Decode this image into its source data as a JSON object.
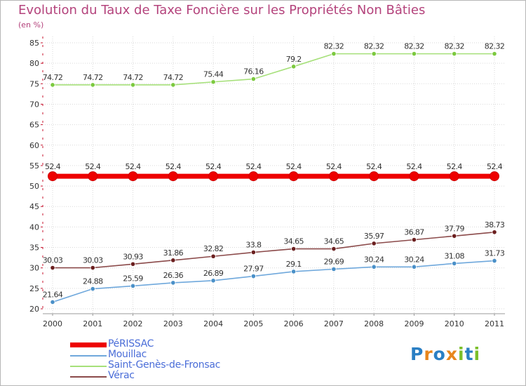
{
  "title": "Evolution du Taux de Taxe Foncière sur les Propriétés Non Bâties",
  "unit": "(en %)",
  "logo": {
    "text": "Proxiti",
    "colors": [
      "#2a7fc4",
      "#e8861c",
      "#2a7fc4",
      "#e8861c",
      "#7bbf2a",
      "#2a7fc4",
      "#7bbf2a"
    ]
  },
  "colors": {
    "title": "#b4437c",
    "axis": "#c8152f",
    "grid": "#d9d9d9",
    "legend_text": "#4a6dd8"
  },
  "chart_data": {
    "type": "line",
    "x": [
      "2000",
      "2001",
      "2002",
      "2003",
      "2004",
      "2005",
      "2006",
      "2007",
      "2008",
      "2009",
      "2010",
      "2011"
    ],
    "ylim": [
      20,
      85
    ],
    "yticks": [
      20,
      25,
      30,
      35,
      40,
      45,
      50,
      55,
      60,
      65,
      70,
      75,
      80,
      85
    ],
    "grid": true,
    "legend_position": "bottom-left",
    "series": [
      {
        "name": "PéRISSAC",
        "color": "#ee0000",
        "point_color": "#ee0000",
        "thick": true,
        "values": [
          52.4,
          52.4,
          52.4,
          52.4,
          52.4,
          52.4,
          52.4,
          52.4,
          52.4,
          52.4,
          52.4,
          52.4
        ],
        "labels": [
          "52.4",
          "52.4",
          "52.4",
          "52.4",
          "52.4",
          "52.4",
          "52.4",
          "52.4",
          "52.4",
          "52.4",
          "52.4",
          "52.4"
        ]
      },
      {
        "name": "Mouillac",
        "color": "#6fa8dc",
        "point_color": "#4a90c8",
        "thick": false,
        "values": [
          21.64,
          24.88,
          25.59,
          26.36,
          26.89,
          27.97,
          29.1,
          29.69,
          30.24,
          30.24,
          31.08,
          31.73
        ],
        "labels": [
          "21.64",
          "24.88",
          "25.59",
          "26.36",
          "26.89",
          "27.97",
          "29.1",
          "29.69",
          "30.24",
          "30.24",
          "31.08",
          "31.73"
        ]
      },
      {
        "name": "Saint-Genès-de-Fronsac",
        "color": "#a6e07a",
        "point_color": "#7cc93f",
        "thick": false,
        "values": [
          74.72,
          74.72,
          74.72,
          74.72,
          75.44,
          76.16,
          79.2,
          82.32,
          82.32,
          82.32,
          82.32,
          82.32
        ],
        "labels": [
          "74.72",
          "74.72",
          "74.72",
          "74.72",
          "75.44",
          "76.16",
          "79.2",
          "82.32",
          "82.32",
          "82.32",
          "82.32",
          "82.32"
        ]
      },
      {
        "name": "Vérac",
        "color": "#8b4a4a",
        "point_color": "#6b1f1f",
        "thick": false,
        "values": [
          30.03,
          30.03,
          30.93,
          31.86,
          32.82,
          33.8,
          34.65,
          34.65,
          35.97,
          36.87,
          37.79,
          38.73
        ],
        "labels": [
          "30.03",
          "30.03",
          "30.93",
          "31.86",
          "32.82",
          "33.8",
          "34.65",
          "34.65",
          "35.97",
          "36.87",
          "37.79",
          "38.73"
        ]
      }
    ]
  }
}
